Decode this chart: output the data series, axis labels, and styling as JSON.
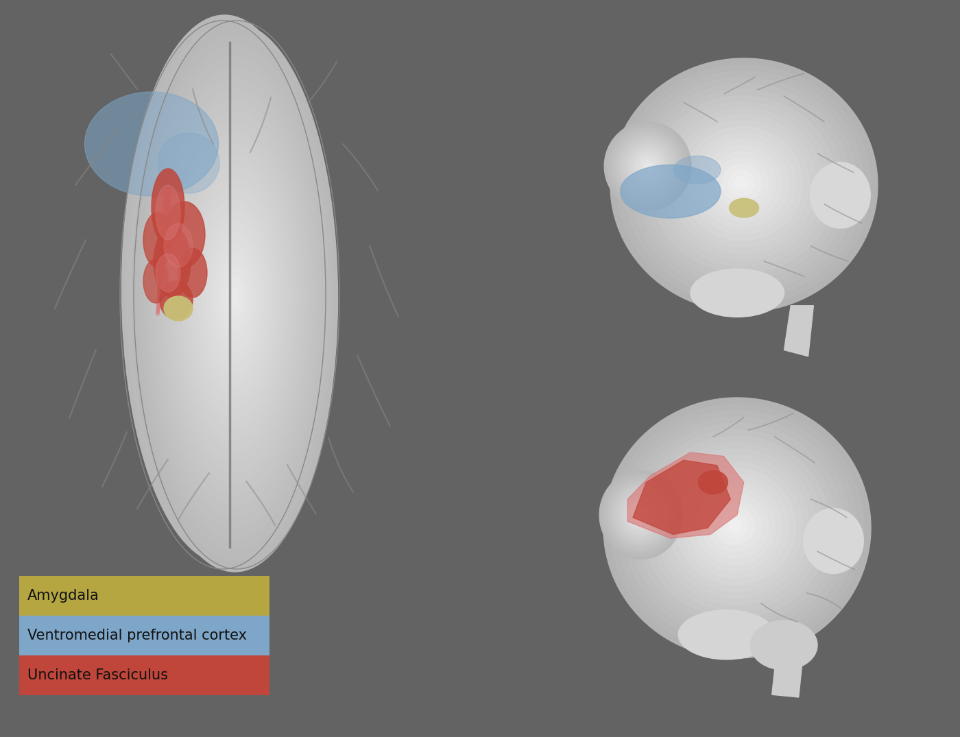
{
  "background_color": "#636363",
  "legend_items": [
    {
      "label": "Amygdala",
      "color": "#b5a642"
    },
    {
      "label": "Ventromedial prefrontal cortex",
      "color": "#7ea6c8"
    },
    {
      "label": "Uncinate Fasciculus",
      "color": "#c0453a"
    }
  ],
  "legend_font_size": 15,
  "legend_text_color": "#111111",
  "brain_color_light": "#f0f0f0",
  "brain_color_mid": "#d8d8d8",
  "brain_color_dark": "#b8b8b8",
  "amygdala_color": "#c8c078",
  "vmPFC_color": "#7ea6c8",
  "vmPFC_alpha": 0.65,
  "uf_color": "#c0453a",
  "uf_light_color": "#d97878",
  "fig_width": 14.0,
  "fig_height": 10.75
}
